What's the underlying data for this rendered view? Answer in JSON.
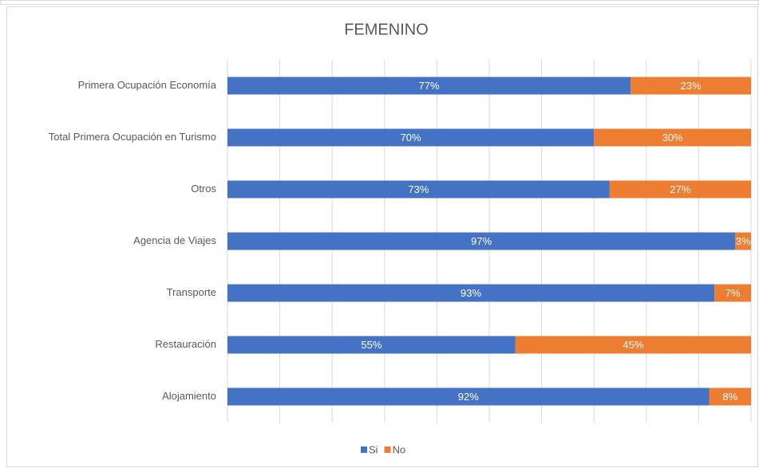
{
  "chart_data": {
    "type": "stacked_bar_horizontal",
    "title": "FEMENINO",
    "categories": [
      "Primera Ocupación Economía",
      "Total Primera Ocupación en Turismo",
      "Otros",
      "Agencia de Viajes",
      "Transporte",
      "Restauración",
      "Alojamiento"
    ],
    "series": [
      {
        "name": "Si",
        "color": "#4472c4",
        "values": [
          77,
          70,
          73,
          97,
          93,
          55,
          92
        ],
        "value_labels": [
          "77%",
          "70%",
          "73%",
          "97%",
          "93%",
          "55%",
          "92%"
        ]
      },
      {
        "name": "No",
        "color": "#ed7d31",
        "values": [
          23,
          30,
          27,
          3,
          7,
          45,
          8
        ],
        "value_labels": [
          "23%",
          "30%",
          "27%",
          "3%",
          "7%",
          "45%",
          "8%"
        ]
      }
    ],
    "xlim": [
      0,
      100
    ],
    "xticks": [
      0,
      10,
      20,
      30,
      40,
      50,
      60,
      70,
      80,
      90,
      100
    ],
    "grid": true,
    "legend": "bottom"
  }
}
